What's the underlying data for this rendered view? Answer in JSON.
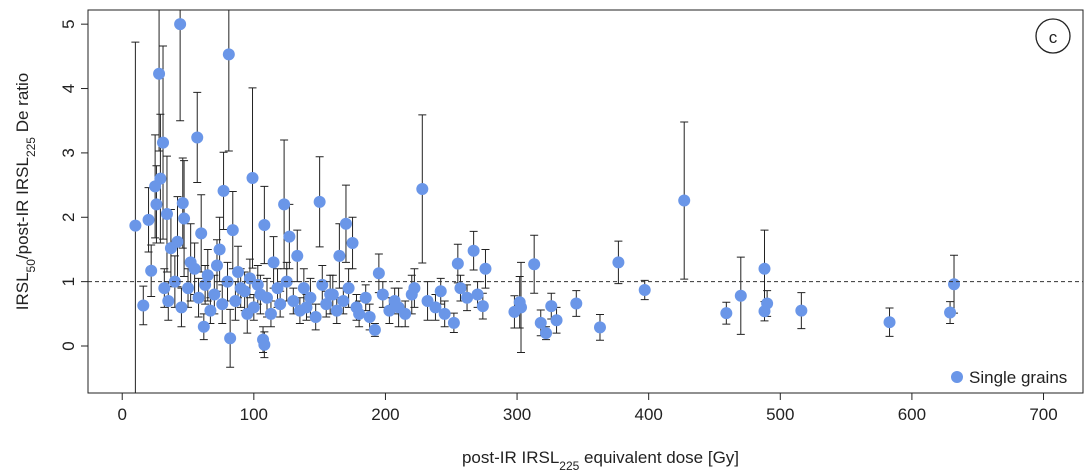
{
  "chart_data": {
    "type": "scatter",
    "xlabel": [
      {
        "text": "post-IR IRSL"
      },
      {
        "text": "225",
        "sub": true
      },
      {
        "text": " equivalent dose [Gy]"
      }
    ],
    "ylabel": [
      {
        "text": "IRSL"
      },
      {
        "text": "50",
        "sub": true
      },
      {
        "text": "/post-IR IRSL"
      },
      {
        "text": "225",
        "sub": true
      },
      {
        "text": " De ratio"
      }
    ],
    "annotation": "c",
    "xlim": [
      -26,
      730
    ],
    "ylim": [
      -0.73,
      5.22
    ],
    "xticks": [
      0,
      100,
      200,
      300,
      400,
      500,
      600,
      700
    ],
    "yticks": [
      0,
      1,
      2,
      3,
      4,
      5
    ],
    "hline": 1,
    "legend": "bottom-right",
    "series": [
      {
        "name": "Single grains",
        "color": "#6a96e8",
        "x": [
          10,
          16,
          20,
          22,
          25,
          26,
          28,
          29,
          31,
          32,
          34,
          37,
          42,
          44,
          46,
          47,
          52,
          57,
          60,
          62,
          65,
          70,
          74,
          77,
          81,
          82,
          84,
          90,
          95,
          99,
          105,
          107,
          108,
          108,
          115,
          123,
          127,
          133,
          140,
          150,
          158,
          165,
          170,
          175,
          180,
          192,
          195,
          210,
          220,
          228,
          232,
          245,
          252,
          255,
          257,
          262,
          267,
          270,
          274,
          276,
          298,
          302,
          303,
          313,
          318,
          322,
          326,
          330,
          345,
          363,
          377,
          397,
          427,
          459,
          470,
          488,
          488,
          490,
          516,
          583,
          629,
          632,
          35,
          40,
          45,
          50,
          55,
          58,
          63,
          67,
          72,
          76,
          80,
          86,
          88,
          93,
          97,
          100,
          103,
          110,
          113,
          118,
          120,
          125,
          130,
          135,
          138,
          143,
          147,
          152,
          155,
          160,
          163,
          168,
          172,
          178,
          185,
          188,
          198,
          203,
          207,
          215,
          222,
          238,
          242
        ],
        "values": [
          1.87,
          0.63,
          1.96,
          1.17,
          2.48,
          2.2,
          4.23,
          2.6,
          3.16,
          0.9,
          2.05,
          1.52,
          1.62,
          5.0,
          2.22,
          1.98,
          1.3,
          3.24,
          1.75,
          0.3,
          1.1,
          0.8,
          1.5,
          2.41,
          4.53,
          0.12,
          1.8,
          0.9,
          0.5,
          2.61,
          0.8,
          0.1,
          0.02,
          1.88,
          1.3,
          2.2,
          1.7,
          1.4,
          0.6,
          2.24,
          0.8,
          1.4,
          1.9,
          1.6,
          0.5,
          0.25,
          1.13,
          0.6,
          0.8,
          2.44,
          0.7,
          0.5,
          0.36,
          1.28,
          0.9,
          0.75,
          1.48,
          0.8,
          0.62,
          1.2,
          0.53,
          0.68,
          0.6,
          1.27,
          0.36,
          0.2,
          0.62,
          0.4,
          0.66,
          0.29,
          1.3,
          0.87,
          2.26,
          0.51,
          0.78,
          0.54,
          1.2,
          0.66,
          0.55,
          0.37,
          0.52,
          0.96,
          0.7,
          1.0,
          0.6,
          0.9,
          1.2,
          0.75,
          0.95,
          0.55,
          1.25,
          0.65,
          1.0,
          0.7,
          1.15,
          0.85,
          1.05,
          0.6,
          0.95,
          0.75,
          0.5,
          0.9,
          0.65,
          1.0,
          0.7,
          0.55,
          0.9,
          0.75,
          0.45,
          0.95,
          0.65,
          0.8,
          0.55,
          0.7,
          0.9,
          0.6,
          0.75,
          0.45,
          0.8,
          0.55,
          0.7,
          0.5,
          0.9,
          0.6,
          0.85
        ],
        "errors": [
          2.85,
          0.3,
          0.5,
          0.4,
          0.8,
          0.6,
          1.2,
          1.0,
          1.5,
          0.3,
          0.9,
          0.6,
          0.7,
          1.5,
          0.7,
          0.9,
          0.6,
          0.7,
          0.6,
          0.2,
          0.4,
          0.3,
          0.5,
          0.6,
          1.5,
          0.45,
          0.6,
          0.3,
          0.3,
          1.4,
          0.3,
          0.2,
          0.2,
          0.6,
          0.4,
          1.0,
          0.5,
          0.4,
          0.2,
          0.7,
          0.3,
          0.5,
          0.6,
          0.4,
          0.2,
          0.1,
          0.3,
          0.3,
          0.3,
          1.15,
          0.3,
          0.2,
          0.15,
          0.3,
          0.2,
          0.2,
          0.3,
          0.2,
          0.2,
          0.3,
          0.25,
          0.4,
          0.7,
          0.45,
          0.2,
          0.1,
          0.2,
          0.2,
          0.2,
          0.2,
          0.33,
          0.15,
          1.22,
          0.17,
          0.6,
          0.15,
          0.6,
          0.2,
          0.28,
          0.22,
          0.17,
          0.45,
          0.3,
          0.4,
          0.3,
          0.3,
          0.4,
          0.3,
          0.3,
          0.2,
          0.4,
          0.3,
          0.3,
          0.3,
          0.4,
          0.3,
          0.3,
          0.2,
          0.3,
          0.3,
          0.2,
          0.3,
          0.2,
          0.3,
          0.2,
          0.2,
          0.3,
          0.3,
          0.2,
          0.3,
          0.2,
          0.3,
          0.2,
          0.2,
          0.3,
          0.2,
          0.2,
          0.2,
          0.2,
          0.2,
          0.2,
          0.2,
          0.3,
          0.2,
          0.2
        ]
      }
    ]
  }
}
